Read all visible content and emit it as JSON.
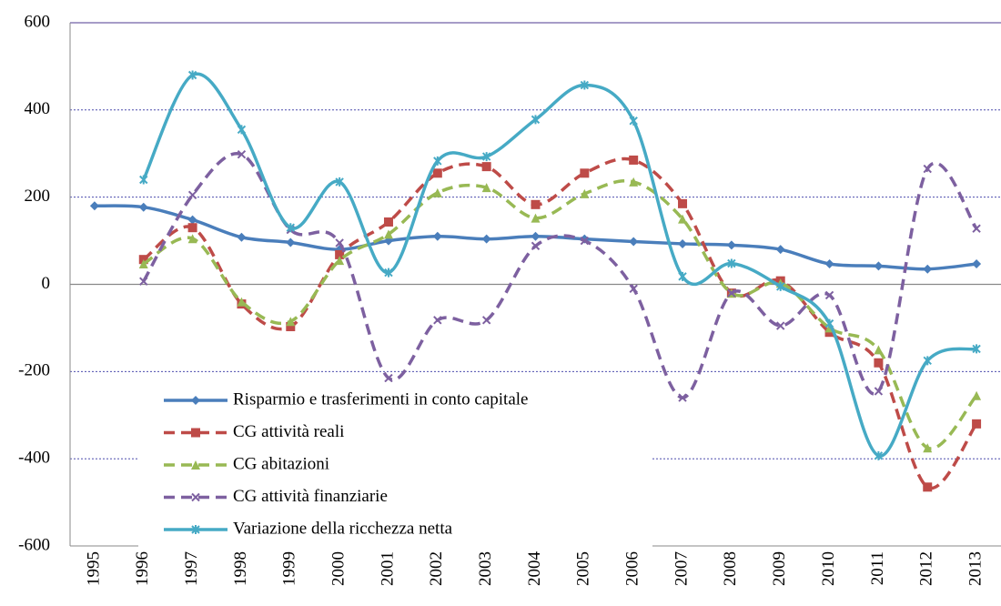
{
  "chart_data": {
    "type": "line",
    "categories": [
      "1995",
      "1996",
      "1997",
      "1998",
      "1999",
      "2000",
      "2001",
      "2002",
      "2003",
      "2004",
      "2005",
      "2006",
      "2007",
      "2008",
      "2009",
      "2010",
      "2011",
      "2012",
      "2013"
    ],
    "ylim": [
      -600,
      600
    ],
    "yticks": [
      -600,
      -400,
      -200,
      0,
      200,
      400,
      600
    ],
    "grid": true,
    "legend": "lower left",
    "series": [
      {
        "name": "Risparmio e trasferimenti in conto capitale",
        "color": "#4a7ebb",
        "marker": "diamond",
        "dash": "solid",
        "values": [
          180,
          177,
          148,
          108,
          96,
          80,
          100,
          110,
          104,
          110,
          104,
          98,
          93,
          90,
          80,
          47,
          42,
          35,
          47
        ]
      },
      {
        "name": "CG attività reali",
        "color": "#be4b48",
        "marker": "square",
        "dash": "dashed",
        "values": [
          null,
          57,
          130,
          -45,
          -97,
          68,
          143,
          255,
          270,
          183,
          255,
          285,
          185,
          -20,
          8,
          -110,
          -180,
          -465,
          -320
        ]
      },
      {
        "name": "CG abitazioni",
        "color": "#98b954",
        "marker": "triangle",
        "dash": "dashed",
        "values": [
          null,
          47,
          105,
          -40,
          -85,
          55,
          115,
          210,
          222,
          152,
          208,
          235,
          150,
          -20,
          3,
          -100,
          -150,
          -375,
          -255
        ]
      },
      {
        "name": "CG attività finanziarie",
        "color": "#7d60a0",
        "marker": "x",
        "dash": "dashed",
        "values": [
          null,
          7,
          205,
          298,
          125,
          95,
          -215,
          -82,
          -82,
          88,
          100,
          -10,
          -260,
          -20,
          -95,
          -25,
          -245,
          265,
          128
        ]
      },
      {
        "name": "Variazione della ricchezza netta",
        "color": "#46aac5",
        "marker": "star",
        "dash": "solid",
        "values": [
          null,
          240,
          480,
          355,
          130,
          235,
          27,
          283,
          293,
          378,
          457,
          375,
          18,
          48,
          -5,
          -90,
          -393,
          -175,
          -148
        ]
      }
    ]
  }
}
